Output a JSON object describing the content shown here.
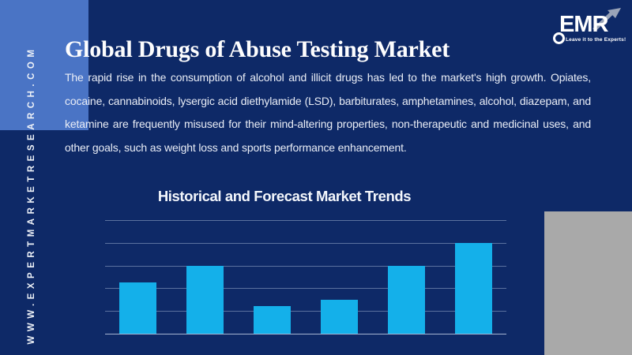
{
  "colors": {
    "background": "#0e2967",
    "accent_panel": "#4a74c5",
    "gray_panel": "#a9a9a9",
    "bar": "#14b0ea",
    "text": "#ffffff"
  },
  "sidebar": {
    "vertical_text": "WWW.EXPERTMARKETRESEARCH.COM"
  },
  "logo": {
    "text": "EMR",
    "tagline": "Leave it to the Experts!"
  },
  "header": {
    "title": "Global Drugs of Abuse Testing Market",
    "description": "The rapid rise in the consumption of alcohol and illicit drugs has led to the market's high growth. Opiates, cocaine, cannabinoids, lysergic acid diethylamide (LSD), barbiturates, amphetamines, alcohol, diazepam, and ketamine are frequently misused for their mind-altering properties, non-therapeutic and medicinal uses, and other goals, such as weight loss and sports performance enhancement."
  },
  "chart_data": {
    "type": "bar",
    "title": "Historical and Forecast Market Trends",
    "values": [
      2.25,
      3,
      1.2,
      1.5,
      3,
      4
    ],
    "ylim": [
      0,
      5
    ],
    "gridline_count": 6,
    "xlabel": "",
    "ylabel": "",
    "tick_labels": "none",
    "legend": "none",
    "grid": "horizontal"
  }
}
